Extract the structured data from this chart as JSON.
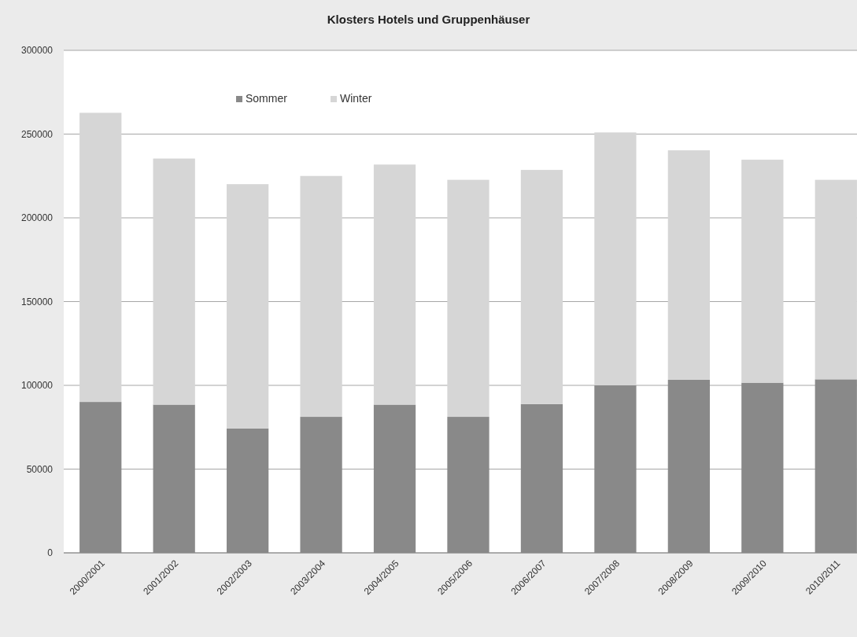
{
  "chart_data": {
    "type": "bar",
    "title": "Klosters Hotels und Gruppenhäuser",
    "stacked": true,
    "categories": [
      "2000/2001",
      "2001/2002",
      "2002/2003",
      "2003/2004",
      "2004/2005",
      "2005/2006",
      "2006/2007",
      "2007/2008",
      "2008/2009",
      "2009/2010",
      "2010/2011"
    ],
    "series": [
      {
        "name": "Sommer",
        "color": "#898989",
        "values": [
          90100,
          88500,
          74300,
          81200,
          88500,
          81200,
          88800,
          100000,
          103300,
          101600,
          103600
        ]
      },
      {
        "name": "Winter",
        "color": "#d6d6d6",
        "values": [
          172600,
          146900,
          145800,
          143800,
          143300,
          141500,
          139800,
          151000,
          137000,
          133100,
          119100
        ]
      }
    ],
    "ylim": [
      0,
      300000
    ],
    "yticks": [
      0,
      50000,
      100000,
      150000,
      200000,
      250000,
      300000
    ],
    "grid": "y",
    "legend": "top"
  }
}
